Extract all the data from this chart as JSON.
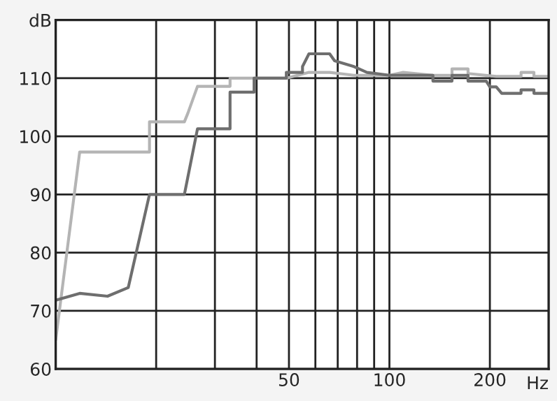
{
  "chart_data": {
    "type": "line",
    "xlabel": "Hz",
    "log": "x",
    "grid": true,
    "xlim": [
      10,
      300
    ],
    "ylim": [
      60,
      120
    ],
    "xticks": [
      {
        "value": 20,
        "label": null
      },
      {
        "value": 30,
        "label": null
      },
      {
        "value": 40,
        "label": null
      },
      {
        "value": 50,
        "label": "50"
      },
      {
        "value": 60,
        "label": null
      },
      {
        "value": 70,
        "label": null
      },
      {
        "value": 80,
        "label": null
      },
      {
        "value": 90,
        "label": null
      },
      {
        "value": 100,
        "label": "100"
      },
      {
        "value": 200,
        "label": "200"
      }
    ],
    "yticks": [
      60,
      70,
      80,
      90,
      100,
      110,
      {
        "value": 120,
        "label": "dB"
      }
    ],
    "series": [
      {
        "color": "#b4b4b4",
        "x": [
          10,
          11.8,
          19.1,
          19.1,
          24.3,
          24.9,
          26.6,
          33.3,
          33.3,
          49.1,
          57.4,
          66.2,
          78.3,
          100,
          110,
          135,
          154,
          154,
          172,
          172,
          209,
          248,
          248,
          271,
          271,
          300
        ],
        "values": [
          65,
          97.3,
          97.3,
          102.5,
          102.5,
          104,
          108.6,
          108.6,
          110,
          110,
          111,
          111,
          110.5,
          110.5,
          111,
          110.5,
          110.5,
          111.6,
          111.6,
          110.8,
          110.3,
          110.3,
          111,
          111,
          110.3,
          110.3
        ]
      },
      {
        "color": "#6e6e6e",
        "x": [
          10,
          11.8,
          14.3,
          16.5,
          19.1,
          24.3,
          26.6,
          33.3,
          33.3,
          39.3,
          39.3,
          49.1,
          49.1,
          54.9,
          54.9,
          57.4,
          66.2,
          68.5,
          78.3,
          85.6,
          100,
          135,
          135,
          154,
          154,
          172,
          172,
          195,
          200,
          209,
          217,
          248,
          248,
          271,
          271,
          300
        ],
        "values": [
          71.8,
          73,
          72.5,
          74,
          90,
          90,
          101.3,
          101.3,
          107.6,
          107.6,
          110,
          110,
          111,
          111,
          112,
          114.2,
          114.2,
          113,
          112,
          111,
          110.5,
          110.5,
          109.5,
          109.5,
          110.5,
          110.5,
          109.5,
          109.5,
          108.5,
          108.5,
          107.4,
          107.4,
          108,
          108,
          107.4,
          107.4
        ]
      }
    ]
  }
}
